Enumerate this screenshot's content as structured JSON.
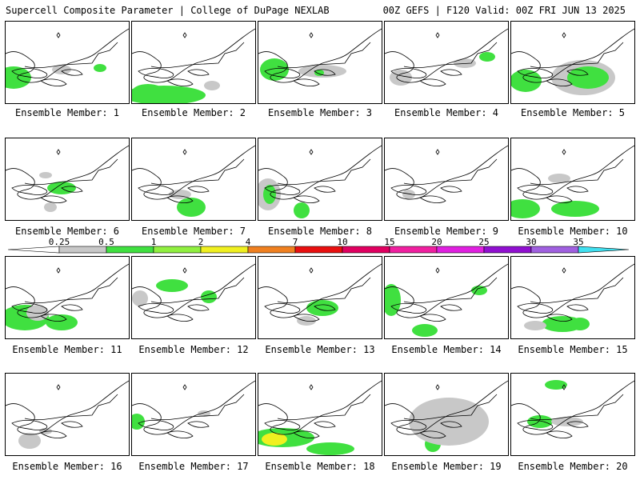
{
  "header": {
    "title": "Supercell Composite Parameter | College of DuPage NEXLAB",
    "valid": "00Z GEFS | F120 Valid: 00Z FRI JUN 13 2025"
  },
  "members": [
    "Ensemble Member: 1",
    "Ensemble Member: 2",
    "Ensemble Member: 3",
    "Ensemble Member: 4",
    "Ensemble Member: 5",
    "Ensemble Member: 6",
    "Ensemble Member: 7",
    "Ensemble Member: 8",
    "Ensemble Member: 9",
    "Ensemble Member: 10",
    "Ensemble Member: 11",
    "Ensemble Member: 12",
    "Ensemble Member: 13",
    "Ensemble Member: 14",
    "Ensemble Member: 15",
    "Ensemble Member: 16",
    "Ensemble Member: 17",
    "Ensemble Member: 18",
    "Ensemble Member: 19",
    "Ensemble Member: 20"
  ],
  "legend": {
    "levels": [
      "0.25",
      "0.5",
      "1",
      "2",
      "4",
      "7",
      "10",
      "15",
      "20",
      "25",
      "30",
      "35"
    ],
    "colors": [
      "#c8c8c8",
      "#40e040",
      "#90f040",
      "#f0f020",
      "#f08020",
      "#e81010",
      "#e00060",
      "#f020a0",
      "#e020e0",
      "#9010d0",
      "#a060e0",
      "#40e0f0"
    ]
  }
}
